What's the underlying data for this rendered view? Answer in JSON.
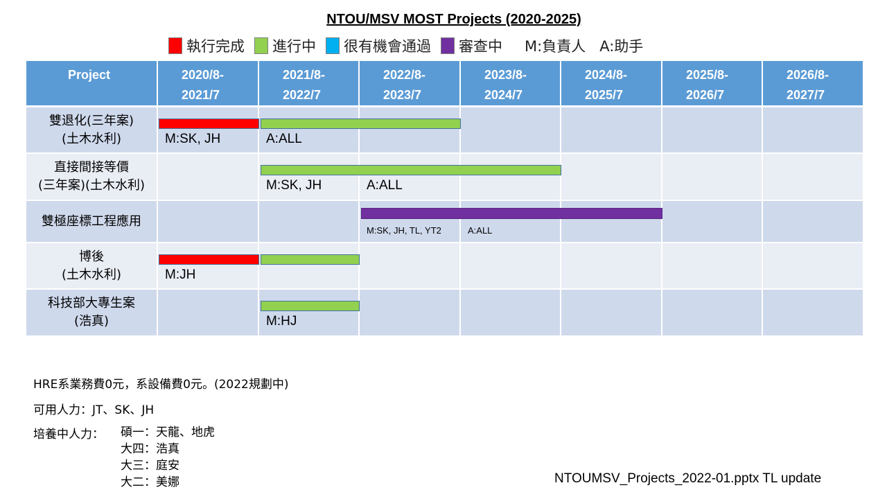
{
  "title": "NTOU/MSV MOST Projects (2020-2025)",
  "legend": [
    {
      "label": "執行完成",
      "color": "#ff0000",
      "status": "done"
    },
    {
      "label": "進行中",
      "color": "#92d050",
      "status": "ongoing"
    },
    {
      "label": "很有機會通過",
      "color": "#00b0f0",
      "status": "likely"
    },
    {
      "label": "審查中",
      "color": "#7030a0",
      "status": "review"
    }
  ],
  "role_legend": [
    "M:負責人",
    "A:助手"
  ],
  "table": {
    "header_color": "#5b9bd5",
    "project_header": "Project",
    "periods": [
      [
        "2020/8-",
        "2021/7"
      ],
      [
        "2021/8-",
        "2022/7"
      ],
      [
        "2022/8-",
        "2023/7"
      ],
      [
        "2023/8-",
        "2024/7"
      ],
      [
        "2024/8-",
        "2025/7"
      ],
      [
        "2025/8-",
        "2026/7"
      ],
      [
        "2026/8-",
        "2027/7"
      ]
    ],
    "rows": [
      {
        "name": [
          "雙退化(三年案)",
          "(土木水利)"
        ],
        "bars": [
          {
            "status": "done",
            "from": "2020/8",
            "to": "2021/7"
          },
          {
            "status": "ongoing",
            "from": "2021/8",
            "to": "2023/7"
          }
        ],
        "labels": [
          {
            "text": "M:SK, JH",
            "period": 0
          },
          {
            "text": "A:ALL",
            "period": 1
          }
        ]
      },
      {
        "name": [
          "直接間接等價",
          "(三年案)(土木水利)"
        ],
        "bars": [
          {
            "status": "ongoing",
            "from": "2021/8",
            "to": "2024/7"
          }
        ],
        "labels": [
          {
            "text": "M:SK, JH",
            "period": 1
          },
          {
            "text": "A:ALL",
            "period": 2
          }
        ]
      },
      {
        "name": [
          "雙極座標工程應用"
        ],
        "bars": [
          {
            "status": "review",
            "from": "2022/8",
            "to": "2025/7"
          }
        ],
        "labels": [
          {
            "text": "M:SK, JH, TL, YT2",
            "period": 2
          },
          {
            "text": "A:ALL",
            "period": 3
          }
        ]
      },
      {
        "name": [
          "博後",
          "(土木水利)"
        ],
        "bars": [
          {
            "status": "done",
            "from": "2020/8",
            "to": "2021/7"
          },
          {
            "status": "ongoing",
            "from": "2021/8",
            "to": "2022/7"
          }
        ],
        "labels": [
          {
            "text": "M:JH",
            "period": 0
          }
        ]
      },
      {
        "name": [
          "科技部大專生案",
          "(浩真)"
        ],
        "bars": [
          {
            "status": "ongoing",
            "from": "2021/8",
            "to": "2022/7"
          }
        ],
        "labels": [
          {
            "text": "M:HJ",
            "period": 1
          }
        ]
      }
    ]
  },
  "notes": {
    "budget": "HRE系業務費0元，系設備費0元。(2022規劃中)",
    "available": "可用人力：JT、SK、JH",
    "training_label": "培養中人力：",
    "training": [
      "碩一：天龍、地虎",
      "大四：浩真",
      "大三：庭安",
      "大二：美娜"
    ]
  },
  "footer": "NTOUMSV_Projects_2022-01.pptx  TL update"
}
